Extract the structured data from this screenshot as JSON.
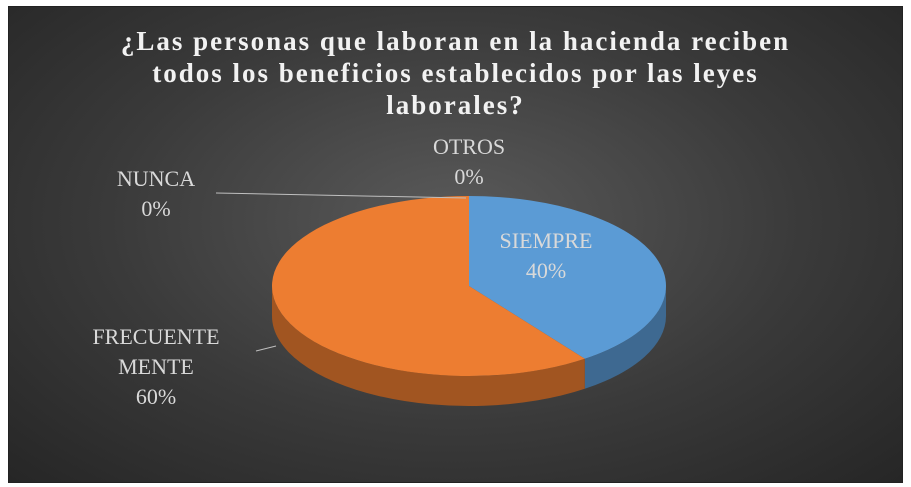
{
  "chart_data": {
    "type": "pie",
    "title": "¿Las personas que laboran en la hacienda reciben todos los beneficios establecidos por las leyes laborales?",
    "categories": [
      "SIEMPRE",
      "FRECUENTE MENTE",
      "NUNCA",
      "OTROS"
    ],
    "values": [
      40,
      60,
      0,
      0
    ],
    "value_labels": [
      "40%",
      "60%",
      "0%",
      "0%"
    ],
    "colors": [
      "#5b9bd5",
      "#ed7d31",
      "#a5a5a5",
      "#ffc000"
    ]
  }
}
